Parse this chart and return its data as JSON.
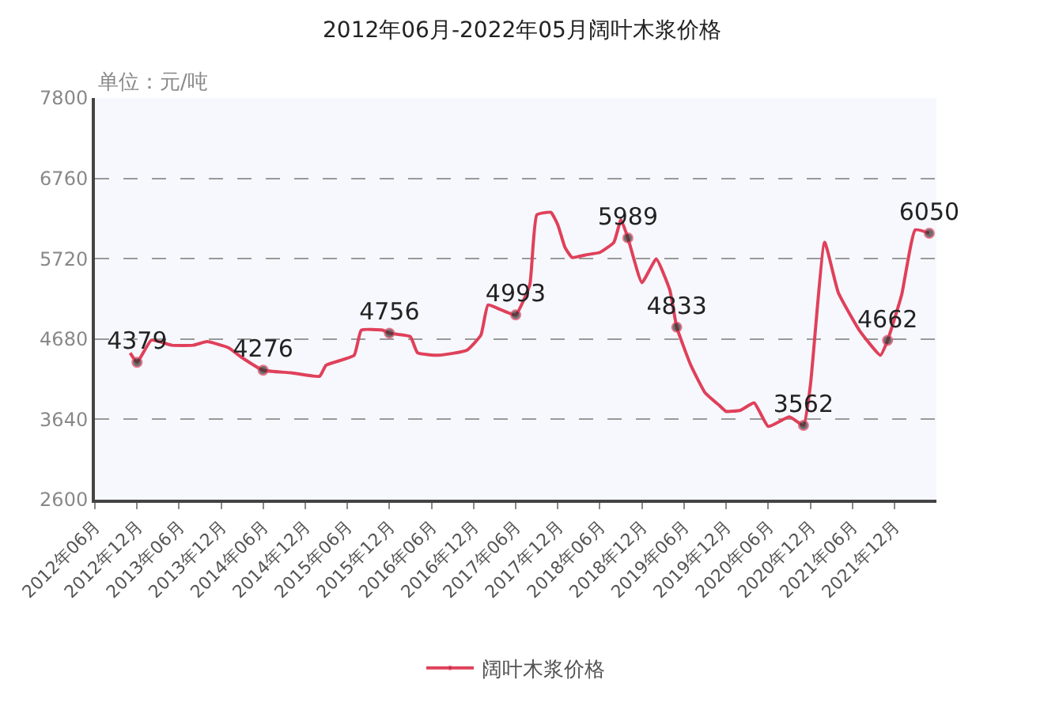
{
  "chart_data": {
    "type": "line",
    "title": "2012年06月-2022年05月阔叶木浆价格",
    "annotations": [
      "单位：元/吨"
    ],
    "x": [
      "2012-11",
      "2012-12",
      "2013-02",
      "2013-05",
      "2013-08",
      "2013-10",
      "2014-01",
      "2014-03",
      "2014-06",
      "2014-10",
      "2015-02",
      "2015-03",
      "2015-07",
      "2015-08",
      "2015-11",
      "2015-12",
      "2016-03",
      "2016-04",
      "2016-07",
      "2016-11",
      "2017-01",
      "2017-02",
      "2017-04",
      "2017-06",
      "2017-08",
      "2017-09",
      "2017-11",
      "2017-12",
      "2018-01",
      "2018-02",
      "2018-04",
      "2018-06",
      "2018-08",
      "2018-09",
      "2018-10",
      "2018-12",
      "2019-02",
      "2019-04",
      "2019-05",
      "2019-07",
      "2019-09",
      "2019-11",
      "2019-12",
      "2020-02",
      "2020-04",
      "2020-06",
      "2020-09",
      "2020-11",
      "2020-12",
      "2021-02",
      "2021-04",
      "2021-07",
      "2021-10",
      "2021-11",
      "2022-01",
      "2022-03",
      "2022-05"
    ],
    "series": [
      {
        "name": "阔叶木浆价格",
        "color": "#e0405a",
        "values": [
          4500,
          4379,
          4665,
          4600,
          4600,
          4646,
          4568,
          4440,
          4276,
          4243,
          4198,
          4340,
          4470,
          4795,
          4795,
          4756,
          4710,
          4503,
          4470,
          4535,
          4730,
          5120,
          5055,
          4993,
          5379,
          6288,
          6320,
          6158,
          5866,
          5736,
          5769,
          5801,
          5931,
          6223,
          5989,
          5411,
          5717,
          5314,
          4833,
          4341,
          3984,
          3822,
          3744,
          3757,
          3854,
          3549,
          3672,
          3562,
          4081,
          5931,
          5282,
          4795,
          4470,
          4662,
          5250,
          6093,
          6050
        ],
        "value_labels": [
          null,
          "4379",
          null,
          null,
          null,
          null,
          null,
          null,
          "4276",
          null,
          null,
          null,
          null,
          null,
          null,
          "4756",
          null,
          null,
          null,
          null,
          null,
          null,
          null,
          "4993",
          null,
          null,
          null,
          null,
          null,
          null,
          null,
          null,
          null,
          null,
          "5989",
          null,
          null,
          null,
          "4833",
          null,
          null,
          null,
          null,
          null,
          null,
          null,
          null,
          "3562",
          null,
          null,
          null,
          null,
          null,
          "4662",
          null,
          null,
          "6050"
        ]
      }
    ],
    "xlim": [
      "2012-06",
      "2022-06"
    ],
    "xticks": [
      {
        "value": "2012-06",
        "label": "2012年06月"
      },
      {
        "value": "2012-12",
        "label": "2012年12月"
      },
      {
        "value": "2013-06",
        "label": "2013年06月"
      },
      {
        "value": "2013-12",
        "label": "2013年12月"
      },
      {
        "value": "2014-06",
        "label": "2014年06月"
      },
      {
        "value": "2014-12",
        "label": "2014年12月"
      },
      {
        "value": "2015-06",
        "label": "2015年06月"
      },
      {
        "value": "2015-12",
        "label": "2015年12月"
      },
      {
        "value": "2016-06",
        "label": "2016年06月"
      },
      {
        "value": "2016-12",
        "label": "2016年12月"
      },
      {
        "value": "2017-06",
        "label": "2017年06月"
      },
      {
        "value": "2017-12",
        "label": "2017年12月"
      },
      {
        "value": "2018-06",
        "label": "2018年06月"
      },
      {
        "value": "2018-12",
        "label": "2018年12月"
      },
      {
        "value": "2019-06",
        "label": "2019年06月"
      },
      {
        "value": "2019-12",
        "label": "2019年12月"
      },
      {
        "value": "2020-06",
        "label": "2020年06月"
      },
      {
        "value": "2020-12",
        "label": "2020年12月"
      },
      {
        "value": "2021-06",
        "label": "2021年06月"
      },
      {
        "value": "2021-12",
        "label": "2021年12月"
      }
    ],
    "ylim": [
      2600,
      7800
    ],
    "yticks": [
      2600,
      3640,
      4680,
      5720,
      6760,
      7800
    ],
    "grid": "y",
    "legend": "bottom"
  }
}
